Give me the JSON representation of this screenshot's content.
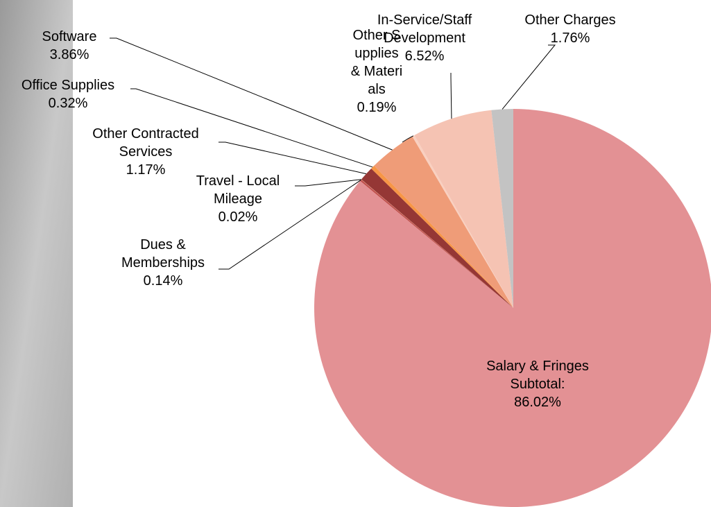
{
  "chart_data": {
    "type": "pie",
    "categories": [
      "Salary & Fringes Subtotal:",
      "Dues & Memberships",
      "Travel - Local Mileage",
      "Other Contracted Services",
      "Office Supplies",
      "Software",
      "Other Supplies & Materials",
      "In-Service/Staff Development",
      "Other Charges"
    ],
    "values": [
      86.02,
      0.14,
      0.02,
      1.17,
      0.32,
      3.86,
      0.19,
      6.52,
      1.76
    ],
    "value_labels": [
      "86.02%",
      "0.14%",
      "0.02%",
      "1.17%",
      "0.32%",
      "3.86%",
      "0.19%",
      "6.52%",
      "1.76%"
    ],
    "colors": [
      "#e39194",
      "#c0504d",
      "#f4b183",
      "#953735",
      "#f79646",
      "#ef9c78",
      "#f9d0c0",
      "#f5c3b3",
      "#c3c3c3"
    ]
  }
}
